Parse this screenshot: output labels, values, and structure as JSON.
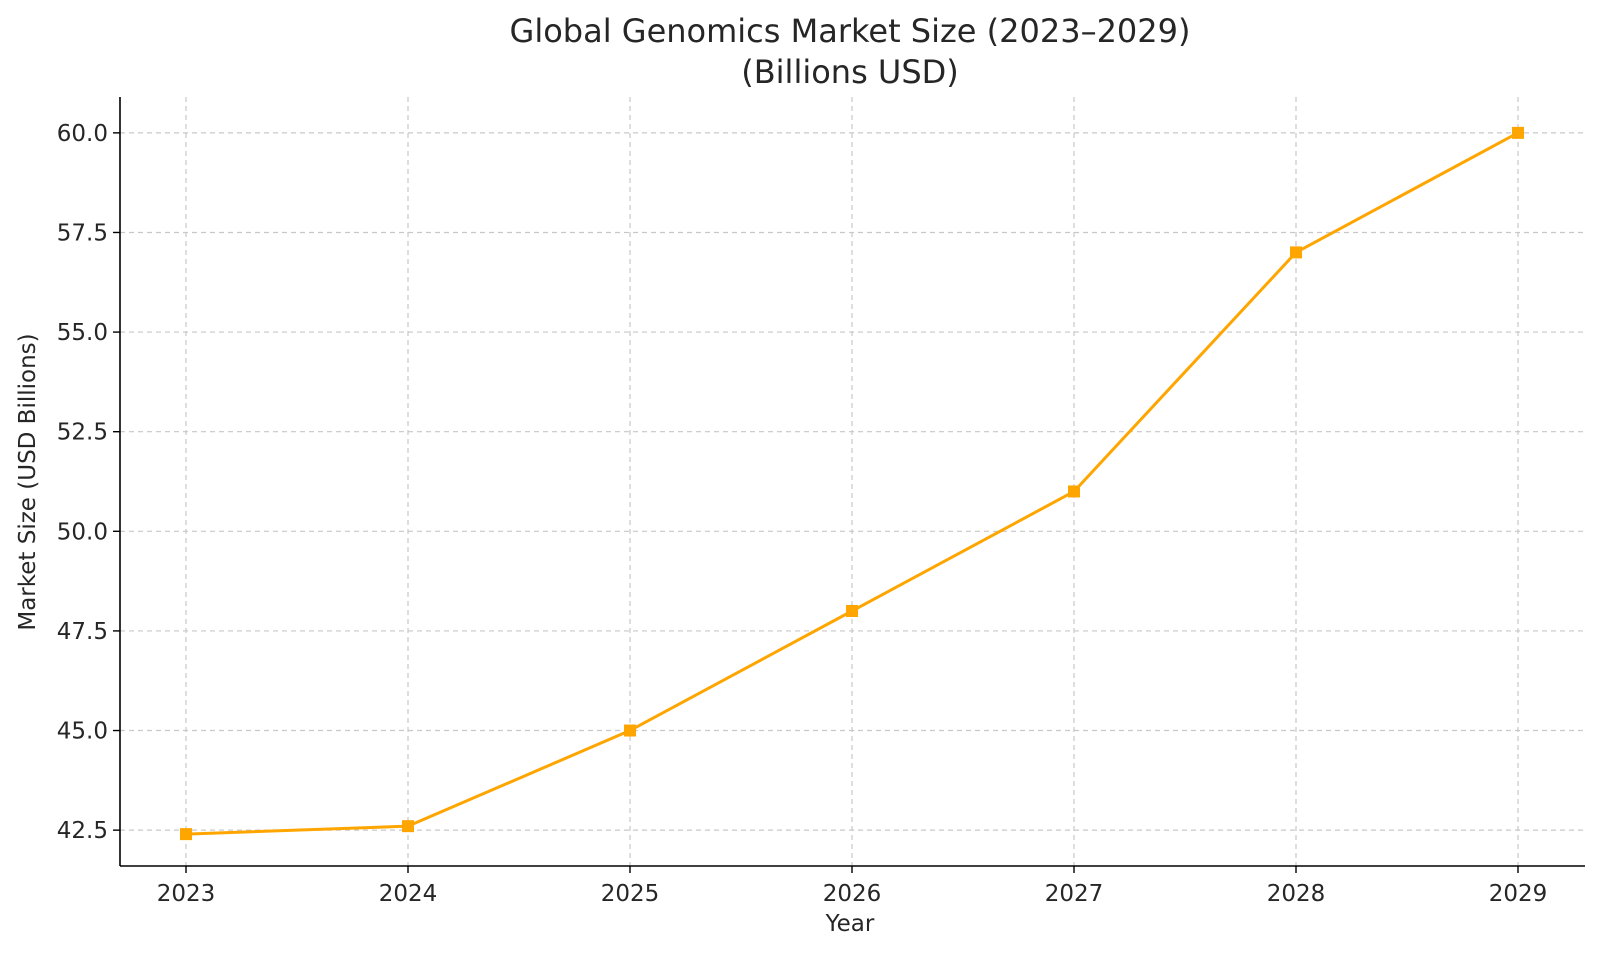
{
  "chart_data": {
    "type": "line",
    "title": "Global Genomics Market Size (2023–2029)",
    "subtitle": "(Billions USD)",
    "xlabel": "Year",
    "ylabel": "Market Size (USD Billions)",
    "x": [
      "2023",
      "2024",
      "2025",
      "2026",
      "2027",
      "2028",
      "2029"
    ],
    "series": [
      {
        "values": [
          42.4,
          42.6,
          45.0,
          48.0,
          51.0,
          57.0,
          60.0
        ],
        "color": "#FFA500",
        "marker": "square"
      }
    ],
    "yticks": [
      "42.5",
      "45.0",
      "47.5",
      "50.0",
      "52.5",
      "55.0",
      "57.5",
      "60.0"
    ],
    "ylim": [
      41.6,
      60.9
    ],
    "grid": true,
    "grid_style": "dashed"
  }
}
